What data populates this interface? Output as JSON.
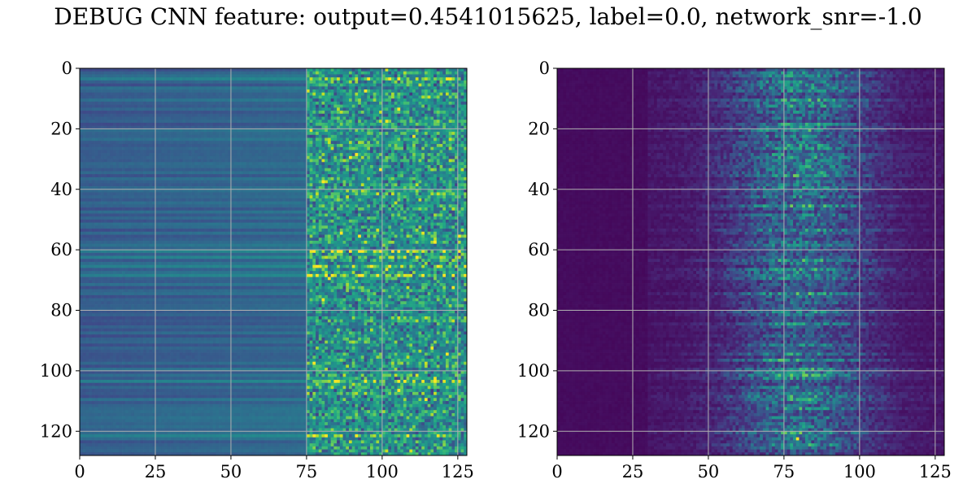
{
  "title": "DEBUG CNN feature: output=0.4541015625, label=0.0, network_snr=-1.0",
  "chart_data": [
    {
      "type": "heatmap",
      "panel": "left",
      "xlim": [
        0,
        128
      ],
      "ylim": [
        128,
        0
      ],
      "xticks": [
        "0",
        "25",
        "50",
        "75",
        "100",
        "125"
      ],
      "yticks": [
        "0",
        "20",
        "40",
        "60",
        "80",
        "100",
        "120"
      ],
      "grid": true,
      "colormap": "viridis",
      "rows": 128,
      "cols": 128,
      "profile": "columns 0-75 smooth horizontal bands (mid teal), columns 75-128 noisy teal/green with bright streaks",
      "bright_rows": [
        3,
        60,
        62,
        65,
        68,
        103,
        121
      ]
    },
    {
      "type": "heatmap",
      "panel": "right",
      "xlim": [
        0,
        128
      ],
      "ylim": [
        128,
        0
      ],
      "xticks": [
        "0",
        "25",
        "50",
        "75",
        "100",
        "125"
      ],
      "yticks": [
        "0",
        "20",
        "40",
        "60",
        "80",
        "100",
        "120"
      ],
      "grid": true,
      "colormap": "viridis",
      "rows": 128,
      "cols": 128,
      "profile": "mostly dark purple; brighter texture from column ~30 rightward, peaking near column 75-85",
      "bright_spot": [
        79,
        122
      ]
    }
  ],
  "colors": {
    "viridis_low": "#440154",
    "viridis_mid": "#21918c",
    "viridis_high": "#fde725",
    "grid": "#b0b0b0"
  }
}
